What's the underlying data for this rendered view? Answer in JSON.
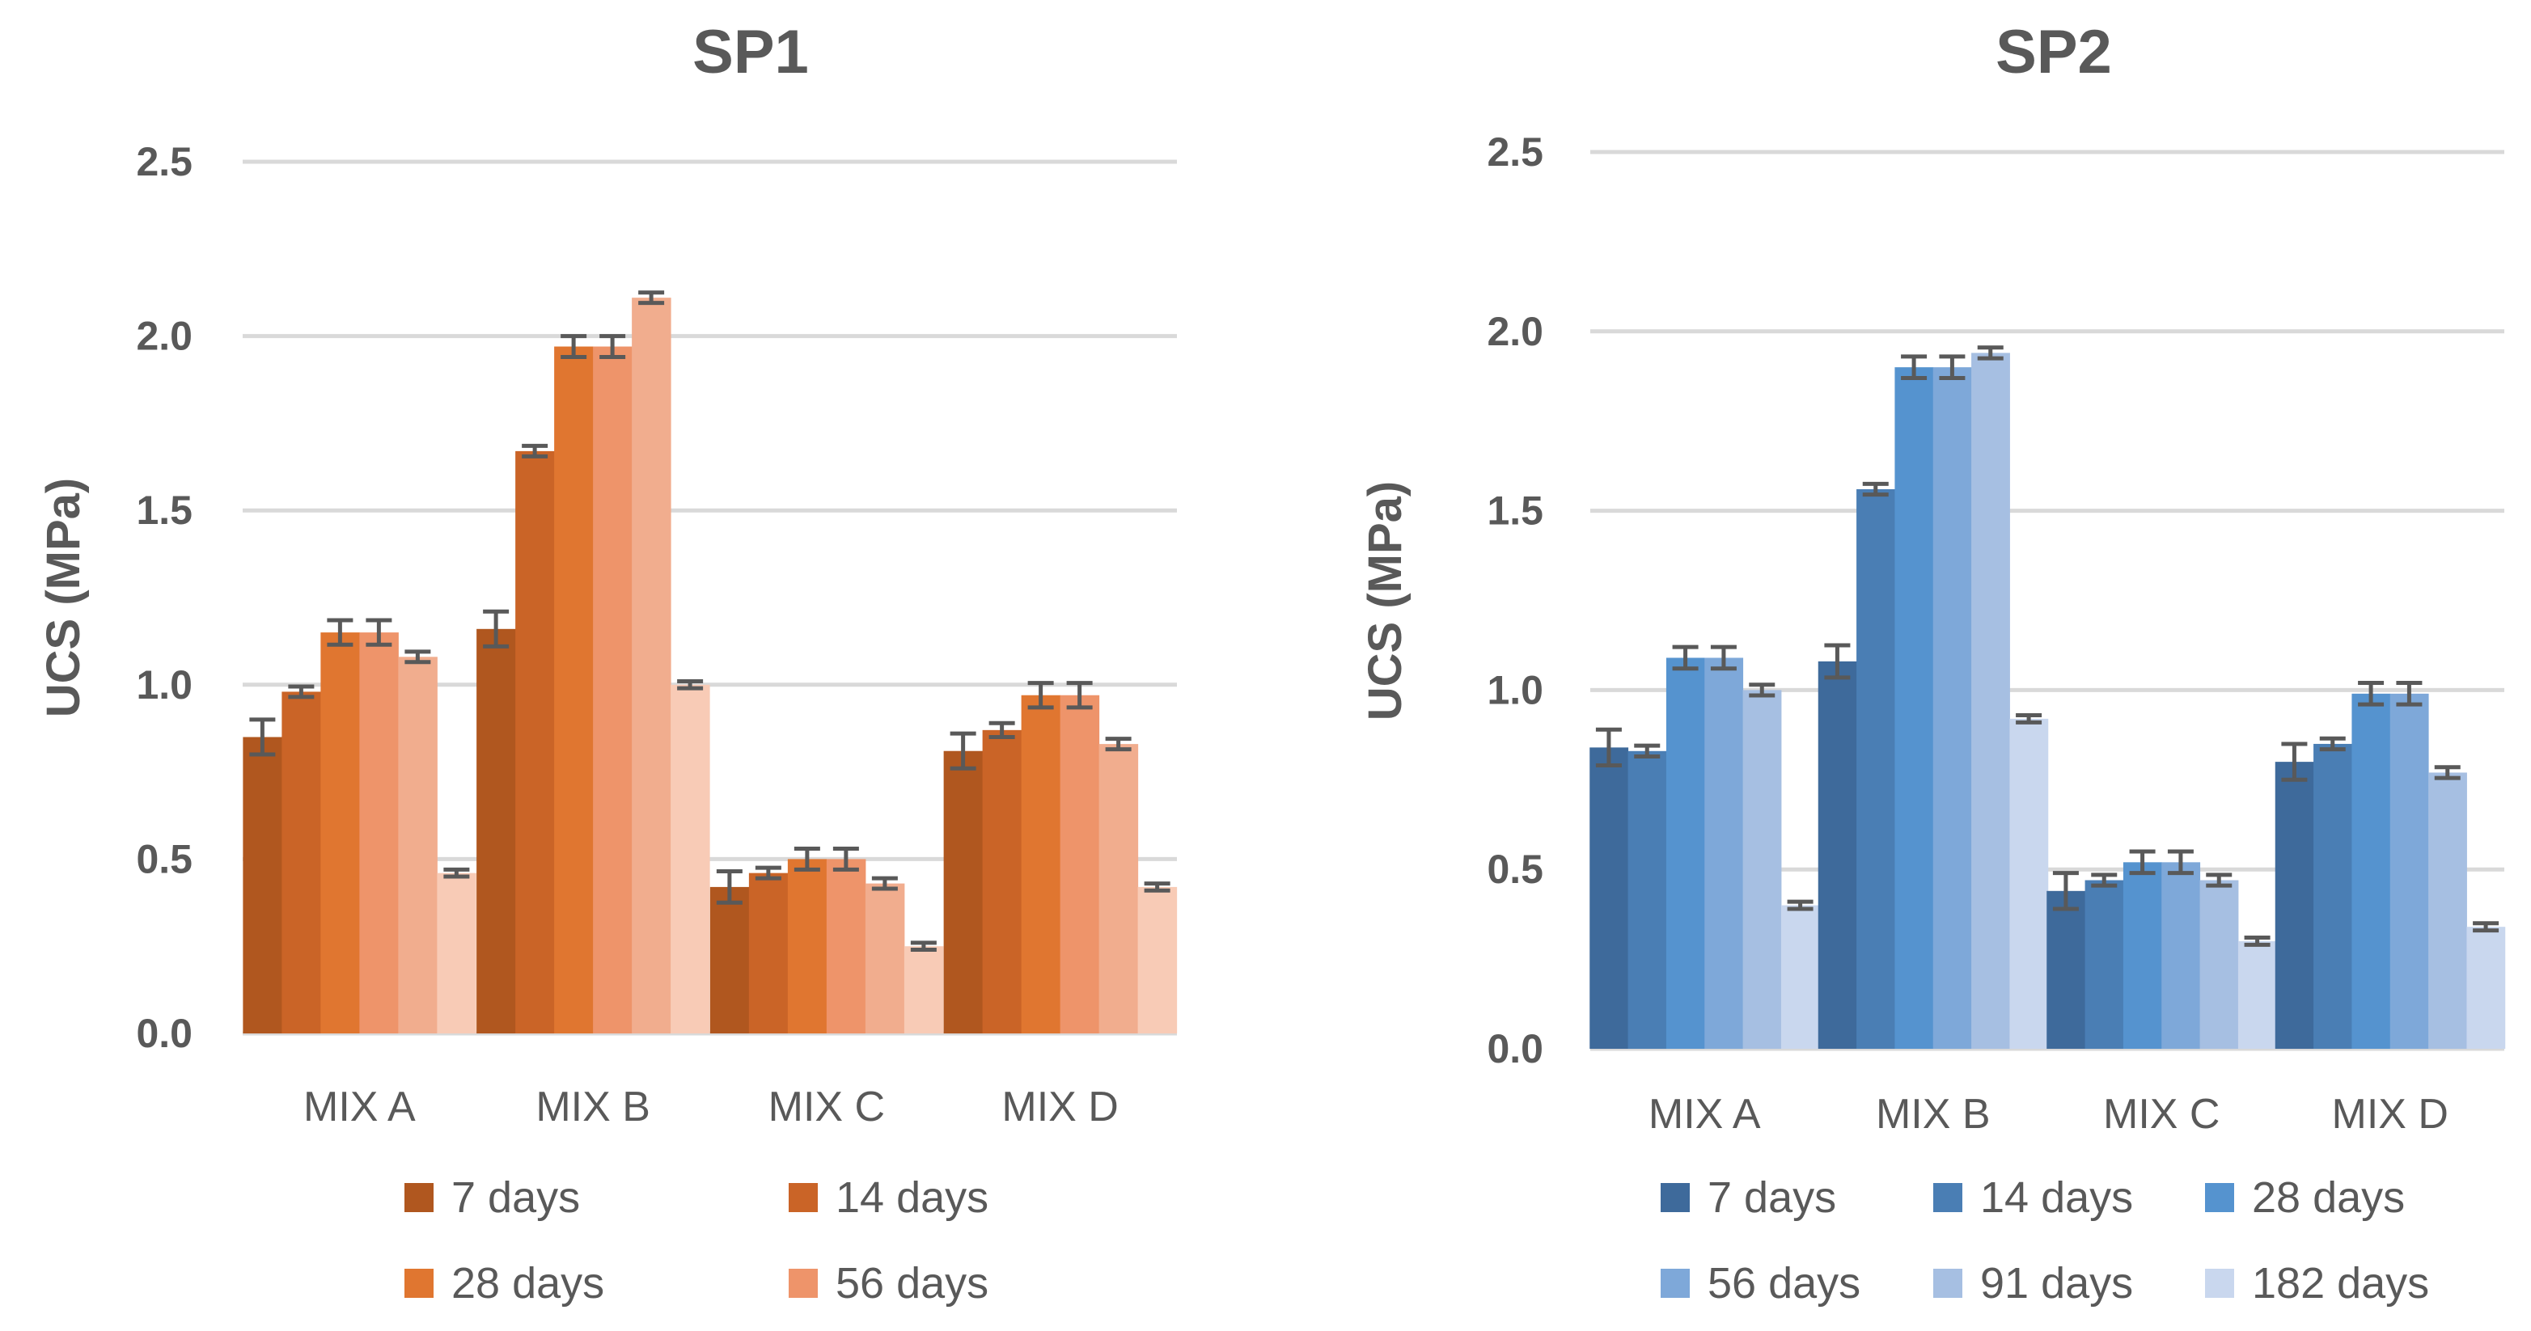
{
  "chart_data": [
    {
      "type": "bar",
      "title": "SP1",
      "ylabel": "UCS (MPa)",
      "xlabel": "",
      "ylim": [
        0,
        2.5
      ],
      "yticks": [
        "0.0",
        "0.5",
        "1.0",
        "1.5",
        "2.0",
        "2.5"
      ],
      "grid": true,
      "legend_position": "bottom",
      "categories": [
        "MIX A",
        "MIX B",
        "MIX C",
        "MIX D"
      ],
      "series": [
        {
          "name": "7 days",
          "color": "#B0571F",
          "values": [
            0.85,
            1.16,
            0.42,
            0.81
          ],
          "errors": [
            0.05,
            0.05,
            0.045,
            0.05
          ]
        },
        {
          "name": "14 days",
          "color": "#CA6427",
          "values": [
            0.98,
            1.67,
            0.46,
            0.87
          ],
          "errors": [
            0.015,
            0.015,
            0.015,
            0.02
          ]
        },
        {
          "name": "28 days",
          "color": "#E07630",
          "values": [
            1.15,
            1.97,
            0.5,
            0.97
          ],
          "errors": [
            0.035,
            0.03,
            0.03,
            0.035
          ]
        },
        {
          "name": "56 days",
          "color": "#EE946A",
          "values": [
            1.15,
            1.97,
            0.5,
            0.97
          ],
          "errors": [
            0.035,
            0.03,
            0.03,
            0.035
          ]
        },
        {
          "name": "",
          "color": "#F1AD8E",
          "values": [
            1.08,
            2.11,
            0.43,
            0.83
          ],
          "errors": [
            0.015,
            0.015,
            0.015,
            0.015
          ]
        },
        {
          "name": "",
          "color": "#F8CBB6",
          "values": [
            0.46,
            1.0,
            0.25,
            0.42
          ],
          "errors": [
            0.01,
            0.01,
            0.01,
            0.01
          ]
        }
      ]
    },
    {
      "type": "bar",
      "title": "SP2",
      "ylabel": "UCS (MPa)",
      "xlabel": "",
      "ylim": [
        0,
        2.5
      ],
      "yticks": [
        "0.0",
        "0.5",
        "1.0",
        "1.5",
        "2.0",
        "2.5"
      ],
      "grid": true,
      "legend_position": "bottom",
      "categories": [
        "MIX A",
        "MIX B",
        "MIX C",
        "MIX D"
      ],
      "series": [
        {
          "name": "7 days",
          "color": "#3E6A9B",
          "values": [
            0.84,
            1.08,
            0.44,
            0.8
          ],
          "errors": [
            0.05,
            0.045,
            0.05,
            0.05
          ]
        },
        {
          "name": "14 days",
          "color": "#4A7EB4",
          "values": [
            0.83,
            1.56,
            0.47,
            0.85
          ],
          "errors": [
            0.015,
            0.015,
            0.015,
            0.015
          ]
        },
        {
          "name": "28 days",
          "color": "#5593CF",
          "values": [
            1.09,
            1.9,
            0.52,
            0.99
          ],
          "errors": [
            0.03,
            0.03,
            0.03,
            0.03
          ]
        },
        {
          "name": "56 days",
          "color": "#7EA8D9",
          "values": [
            1.09,
            1.9,
            0.52,
            0.99
          ],
          "errors": [
            0.03,
            0.03,
            0.03,
            0.03
          ]
        },
        {
          "name": "91 days",
          "color": "#A6BFE2",
          "values": [
            1.0,
            1.94,
            0.47,
            0.77
          ],
          "errors": [
            0.015,
            0.015,
            0.015,
            0.015
          ]
        },
        {
          "name": "182 days",
          "color": "#C9D7EE",
          "values": [
            0.4,
            0.92,
            0.3,
            0.34
          ],
          "errors": [
            0.01,
            0.01,
            0.01,
            0.01
          ]
        }
      ]
    }
  ]
}
